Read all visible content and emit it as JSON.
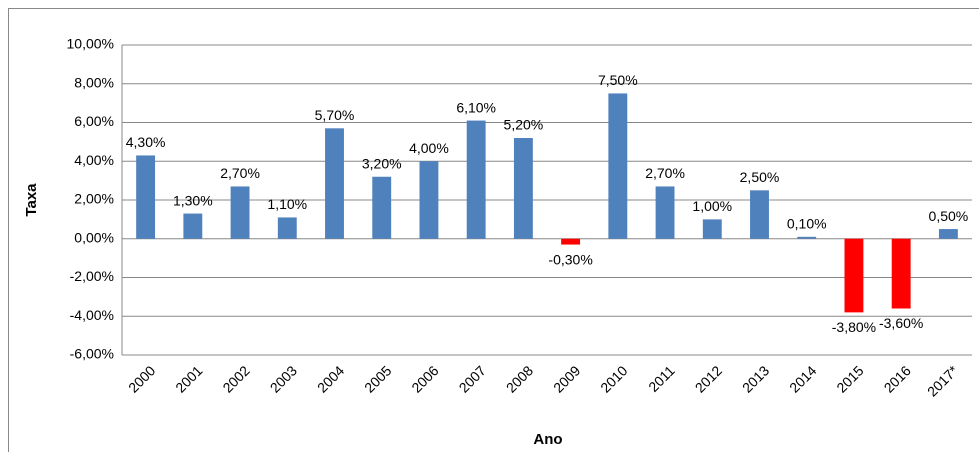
{
  "chart_data": {
    "type": "bar",
    "x_label": "Ano",
    "y_label": "Taxa",
    "categories": [
      "2000",
      "2001",
      "2002",
      "2003",
      "2004",
      "2005",
      "2006",
      "2007",
      "2008",
      "2009",
      "2010",
      "2011",
      "2012",
      "2013",
      "2014",
      "2015",
      "2016",
      "2017*"
    ],
    "values": [
      4.3,
      1.3,
      2.7,
      1.1,
      5.7,
      3.2,
      4.0,
      6.1,
      5.2,
      -0.3,
      7.5,
      2.7,
      1.0,
      2.5,
      0.1,
      -3.8,
      -3.6,
      0.5
    ],
    "value_labels": [
      "4,30%",
      "1,30%",
      "2,70%",
      "1,10%",
      "5,70%",
      "3,20%",
      "4,00%",
      "6,10%",
      "5,20%",
      "-0,30%",
      "7,50%",
      "2,70%",
      "1,00%",
      "2,50%",
      "0,10%",
      "-3,80%",
      "-3,60%",
      "0,50%"
    ],
    "color": "#4f81bd",
    "negative_color": "#ff0000",
    "ylim": [
      -6,
      10
    ],
    "yticks": [
      {
        "value": -6,
        "label": "-6,00%"
      },
      {
        "value": -4,
        "label": "-4,00%"
      },
      {
        "value": -2,
        "label": "-2,00%"
      },
      {
        "value": 0,
        "label": "0,00%"
      },
      {
        "value": 2,
        "label": "2,00%"
      },
      {
        "value": 4,
        "label": "4,00%"
      },
      {
        "value": 6,
        "label": "6,00%"
      },
      {
        "value": 8,
        "label": "8,00%"
      },
      {
        "value": 10,
        "label": "10,00%"
      }
    ],
    "grid": true
  }
}
